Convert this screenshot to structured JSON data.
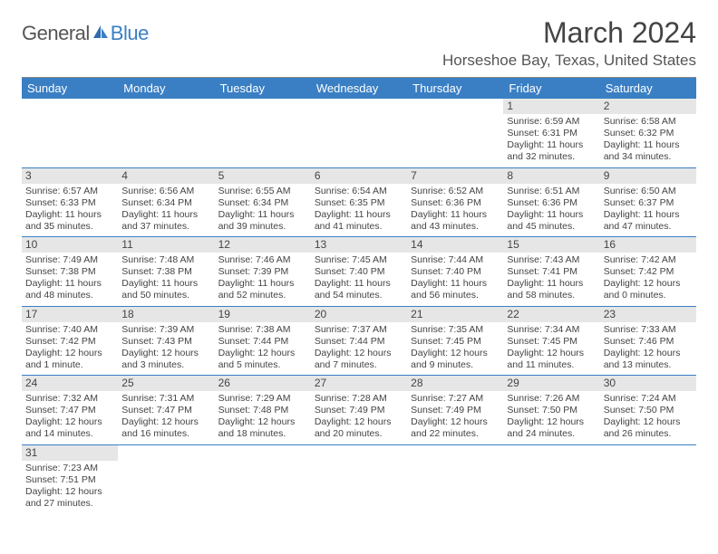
{
  "logo": {
    "part1": "General",
    "part2": "Blue"
  },
  "title": "March 2024",
  "location": "Horseshoe Bay, Texas, United States",
  "colors": {
    "header_bg": "#3a7fc4",
    "header_text": "#ffffff",
    "daynum_bg": "#e6e6e6",
    "border": "#3a7fc4",
    "body_text": "#444444",
    "logo_gray": "#555555",
    "logo_blue": "#3a7fc4"
  },
  "day_headers": [
    "Sunday",
    "Monday",
    "Tuesday",
    "Wednesday",
    "Thursday",
    "Friday",
    "Saturday"
  ],
  "weeks": [
    [
      {
        "blank": true
      },
      {
        "blank": true
      },
      {
        "blank": true
      },
      {
        "blank": true
      },
      {
        "blank": true
      },
      {
        "n": "1",
        "sr": "Sunrise: 6:59 AM",
        "ss": "Sunset: 6:31 PM",
        "dl1": "Daylight: 11 hours",
        "dl2": "and 32 minutes."
      },
      {
        "n": "2",
        "sr": "Sunrise: 6:58 AM",
        "ss": "Sunset: 6:32 PM",
        "dl1": "Daylight: 11 hours",
        "dl2": "and 34 minutes."
      }
    ],
    [
      {
        "n": "3",
        "sr": "Sunrise: 6:57 AM",
        "ss": "Sunset: 6:33 PM",
        "dl1": "Daylight: 11 hours",
        "dl2": "and 35 minutes."
      },
      {
        "n": "4",
        "sr": "Sunrise: 6:56 AM",
        "ss": "Sunset: 6:34 PM",
        "dl1": "Daylight: 11 hours",
        "dl2": "and 37 minutes."
      },
      {
        "n": "5",
        "sr": "Sunrise: 6:55 AM",
        "ss": "Sunset: 6:34 PM",
        "dl1": "Daylight: 11 hours",
        "dl2": "and 39 minutes."
      },
      {
        "n": "6",
        "sr": "Sunrise: 6:54 AM",
        "ss": "Sunset: 6:35 PM",
        "dl1": "Daylight: 11 hours",
        "dl2": "and 41 minutes."
      },
      {
        "n": "7",
        "sr": "Sunrise: 6:52 AM",
        "ss": "Sunset: 6:36 PM",
        "dl1": "Daylight: 11 hours",
        "dl2": "and 43 minutes."
      },
      {
        "n": "8",
        "sr": "Sunrise: 6:51 AM",
        "ss": "Sunset: 6:36 PM",
        "dl1": "Daylight: 11 hours",
        "dl2": "and 45 minutes."
      },
      {
        "n": "9",
        "sr": "Sunrise: 6:50 AM",
        "ss": "Sunset: 6:37 PM",
        "dl1": "Daylight: 11 hours",
        "dl2": "and 47 minutes."
      }
    ],
    [
      {
        "n": "10",
        "sr": "Sunrise: 7:49 AM",
        "ss": "Sunset: 7:38 PM",
        "dl1": "Daylight: 11 hours",
        "dl2": "and 48 minutes."
      },
      {
        "n": "11",
        "sr": "Sunrise: 7:48 AM",
        "ss": "Sunset: 7:38 PM",
        "dl1": "Daylight: 11 hours",
        "dl2": "and 50 minutes."
      },
      {
        "n": "12",
        "sr": "Sunrise: 7:46 AM",
        "ss": "Sunset: 7:39 PM",
        "dl1": "Daylight: 11 hours",
        "dl2": "and 52 minutes."
      },
      {
        "n": "13",
        "sr": "Sunrise: 7:45 AM",
        "ss": "Sunset: 7:40 PM",
        "dl1": "Daylight: 11 hours",
        "dl2": "and 54 minutes."
      },
      {
        "n": "14",
        "sr": "Sunrise: 7:44 AM",
        "ss": "Sunset: 7:40 PM",
        "dl1": "Daylight: 11 hours",
        "dl2": "and 56 minutes."
      },
      {
        "n": "15",
        "sr": "Sunrise: 7:43 AM",
        "ss": "Sunset: 7:41 PM",
        "dl1": "Daylight: 11 hours",
        "dl2": "and 58 minutes."
      },
      {
        "n": "16",
        "sr": "Sunrise: 7:42 AM",
        "ss": "Sunset: 7:42 PM",
        "dl1": "Daylight: 12 hours",
        "dl2": "and 0 minutes."
      }
    ],
    [
      {
        "n": "17",
        "sr": "Sunrise: 7:40 AM",
        "ss": "Sunset: 7:42 PM",
        "dl1": "Daylight: 12 hours",
        "dl2": "and 1 minute."
      },
      {
        "n": "18",
        "sr": "Sunrise: 7:39 AM",
        "ss": "Sunset: 7:43 PM",
        "dl1": "Daylight: 12 hours",
        "dl2": "and 3 minutes."
      },
      {
        "n": "19",
        "sr": "Sunrise: 7:38 AM",
        "ss": "Sunset: 7:44 PM",
        "dl1": "Daylight: 12 hours",
        "dl2": "and 5 minutes."
      },
      {
        "n": "20",
        "sr": "Sunrise: 7:37 AM",
        "ss": "Sunset: 7:44 PM",
        "dl1": "Daylight: 12 hours",
        "dl2": "and 7 minutes."
      },
      {
        "n": "21",
        "sr": "Sunrise: 7:35 AM",
        "ss": "Sunset: 7:45 PM",
        "dl1": "Daylight: 12 hours",
        "dl2": "and 9 minutes."
      },
      {
        "n": "22",
        "sr": "Sunrise: 7:34 AM",
        "ss": "Sunset: 7:45 PM",
        "dl1": "Daylight: 12 hours",
        "dl2": "and 11 minutes."
      },
      {
        "n": "23",
        "sr": "Sunrise: 7:33 AM",
        "ss": "Sunset: 7:46 PM",
        "dl1": "Daylight: 12 hours",
        "dl2": "and 13 minutes."
      }
    ],
    [
      {
        "n": "24",
        "sr": "Sunrise: 7:32 AM",
        "ss": "Sunset: 7:47 PM",
        "dl1": "Daylight: 12 hours",
        "dl2": "and 14 minutes."
      },
      {
        "n": "25",
        "sr": "Sunrise: 7:31 AM",
        "ss": "Sunset: 7:47 PM",
        "dl1": "Daylight: 12 hours",
        "dl2": "and 16 minutes."
      },
      {
        "n": "26",
        "sr": "Sunrise: 7:29 AM",
        "ss": "Sunset: 7:48 PM",
        "dl1": "Daylight: 12 hours",
        "dl2": "and 18 minutes."
      },
      {
        "n": "27",
        "sr": "Sunrise: 7:28 AM",
        "ss": "Sunset: 7:49 PM",
        "dl1": "Daylight: 12 hours",
        "dl2": "and 20 minutes."
      },
      {
        "n": "28",
        "sr": "Sunrise: 7:27 AM",
        "ss": "Sunset: 7:49 PM",
        "dl1": "Daylight: 12 hours",
        "dl2": "and 22 minutes."
      },
      {
        "n": "29",
        "sr": "Sunrise: 7:26 AM",
        "ss": "Sunset: 7:50 PM",
        "dl1": "Daylight: 12 hours",
        "dl2": "and 24 minutes."
      },
      {
        "n": "30",
        "sr": "Sunrise: 7:24 AM",
        "ss": "Sunset: 7:50 PM",
        "dl1": "Daylight: 12 hours",
        "dl2": "and 26 minutes."
      }
    ],
    [
      {
        "n": "31",
        "sr": "Sunrise: 7:23 AM",
        "ss": "Sunset: 7:51 PM",
        "dl1": "Daylight: 12 hours",
        "dl2": "and 27 minutes."
      },
      {
        "blank": true
      },
      {
        "blank": true
      },
      {
        "blank": true
      },
      {
        "blank": true
      },
      {
        "blank": true
      },
      {
        "blank": true
      }
    ]
  ]
}
